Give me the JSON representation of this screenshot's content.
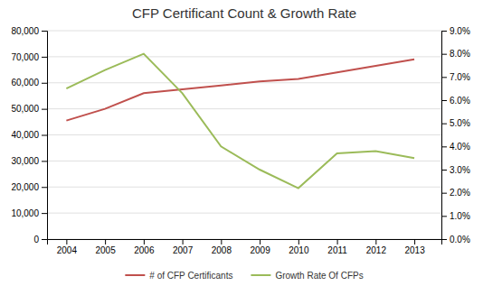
{
  "chart_data": {
    "type": "line",
    "title": "CFP Certificant Count & Growth Rate",
    "x": [
      2004,
      2005,
      2006,
      2007,
      2008,
      2009,
      2010,
      2011,
      2012,
      2013
    ],
    "xlim": [
      2003.5,
      2013.7
    ],
    "xticks": [
      2004,
      2005,
      2006,
      2007,
      2008,
      2009,
      2010,
      2011,
      2012,
      2013
    ],
    "ylim": [
      0,
      80000
    ],
    "yticks": [
      0,
      {
        "value": 10000,
        "label": "10,000"
      },
      {
        "value": 20000,
        "label": "20,000"
      },
      {
        "value": 30000,
        "label": "30,000"
      },
      {
        "value": 40000,
        "label": "40,000"
      },
      {
        "value": 50000,
        "label": "50,000"
      },
      {
        "value": 60000,
        "label": "60,000"
      },
      {
        "value": 70000,
        "label": "70,000"
      },
      {
        "value": 80000,
        "label": "80,000"
      }
    ],
    "y2lim": [
      0.0,
      0.09
    ],
    "y2ticks": [
      {
        "value": 0.0,
        "label": "0.0%"
      },
      {
        "value": 0.01,
        "label": "1.0%"
      },
      {
        "value": 0.02,
        "label": "2.0%"
      },
      {
        "value": 0.03,
        "label": "3.0%"
      },
      {
        "value": 0.04,
        "label": "4.0%"
      },
      {
        "value": 0.05,
        "label": "5.0%"
      },
      {
        "value": 0.06,
        "label": "6.0%"
      },
      {
        "value": 0.07,
        "label": "7.0%"
      },
      {
        "value": 0.08,
        "label": "8.0%"
      },
      {
        "value": 0.09,
        "label": "9.0%"
      }
    ],
    "grid": true,
    "legend": "bottom",
    "series": [
      {
        "name": "# of CFP Certificants",
        "color": "#C0504D",
        "values": [
          45500,
          50000,
          56000,
          57500,
          59000,
          60500,
          61500,
          64000,
          66500,
          69000
        ]
      },
      {
        "name": "Growth Rate Of CFPs",
        "color": "#9BBB59",
        "axis": "y2",
        "values": [
          0.065,
          0.073,
          0.08,
          0.063,
          0.04,
          0.03,
          0.022,
          0.037,
          0.038,
          0.035
        ]
      }
    ]
  }
}
